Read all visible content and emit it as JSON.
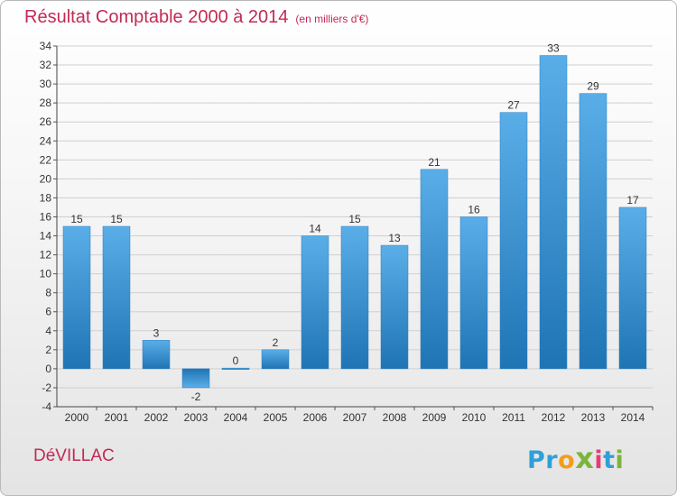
{
  "header": {
    "title": "Résultat Comptable 2000 à 2014",
    "unit": "(en milliers d'€)"
  },
  "footer": {
    "commune": "DéVILLAC",
    "logo": [
      "P",
      "r",
      "o",
      "x",
      "i",
      "t",
      "i"
    ],
    "logo_colors": [
      "#2f9fd8",
      "#2f9fd8",
      "#f39c1b",
      "#7bb53b",
      "#e73b76",
      "#2f9fd8",
      "#7bb53b"
    ]
  },
  "colors": {
    "bar_light": "#5aaee8",
    "bar_dark": "#1f74b4",
    "title": "#c22a56"
  },
  "chart_data": {
    "type": "bar",
    "title": "Résultat Comptable 2000 à 2014",
    "subtitle": "(en milliers d'€)",
    "xlabel": "",
    "ylabel": "",
    "categories": [
      "2000",
      "2001",
      "2002",
      "2003",
      "2004",
      "2005",
      "2006",
      "2007",
      "2008",
      "2009",
      "2010",
      "2011",
      "2012",
      "2013",
      "2014"
    ],
    "values": [
      15,
      15,
      3,
      -2,
      0,
      2,
      14,
      15,
      13,
      21,
      16,
      27,
      33,
      29,
      17
    ],
    "ylim": [
      -4,
      34
    ],
    "yticks": [
      -4,
      -2,
      0,
      2,
      4,
      6,
      8,
      10,
      12,
      14,
      16,
      18,
      20,
      22,
      24,
      26,
      28,
      30,
      32,
      34
    ],
    "grid": true
  }
}
